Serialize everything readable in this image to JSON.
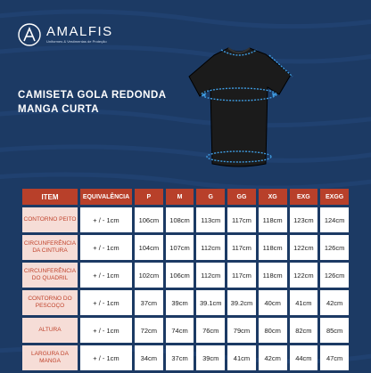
{
  "brand": {
    "name": "AMALFIS",
    "tagline": "Uniformes & Vestimentas de Proteção"
  },
  "product": {
    "title_line1": "CAMISETA GOLA REDONDA",
    "title_line2": "MANGA CURTA"
  },
  "colors": {
    "background": "#1c3a64",
    "header": "#b8402a",
    "label_bg": "#f6ddd7",
    "label_text": "#c0432c"
  },
  "table": {
    "headers": [
      "ITEM",
      "EQUIVALÊNCIA",
      "P",
      "M",
      "G",
      "GG",
      "XG",
      "EXG",
      "EXGG"
    ],
    "rows": [
      {
        "item": "CONTORNO PEITO",
        "equiv": "+ / -  1cm",
        "values": [
          "106cm",
          "108cm",
          "113cm",
          "117cm",
          "118cm",
          "123cm",
          "124cm"
        ]
      },
      {
        "item": "CIRCUNFERÊNCIA DA CINTURA",
        "equiv": "+ / -  1cm",
        "values": [
          "104cm",
          "107cm",
          "112cm",
          "117cm",
          "118cm",
          "122cm",
          "126cm"
        ]
      },
      {
        "item": "CIRCUNFERÊNCIA DO QUADRIL",
        "equiv": "+ / -  1cm",
        "values": [
          "102cm",
          "106cm",
          "112cm",
          "117cm",
          "118cm",
          "122cm",
          "126cm"
        ]
      },
      {
        "item": "CONTORNO DO PESCOÇO",
        "equiv": "+ / -  1cm",
        "values": [
          "37cm",
          "39cm",
          "39.1cm",
          "39.2cm",
          "40cm",
          "41cm",
          "42cm"
        ]
      },
      {
        "item": "ALTURA",
        "equiv": "+ / -  1cm",
        "values": [
          "72cm",
          "74cm",
          "76cm",
          "79cm",
          "80cm",
          "82cm",
          "85cm"
        ]
      },
      {
        "item": "LARGURA DA MANGA",
        "equiv": "+ / -  1cm",
        "values": [
          "34cm",
          "37cm",
          "39cm",
          "41cm",
          "42cm",
          "44cm",
          "47cm"
        ]
      }
    ]
  }
}
